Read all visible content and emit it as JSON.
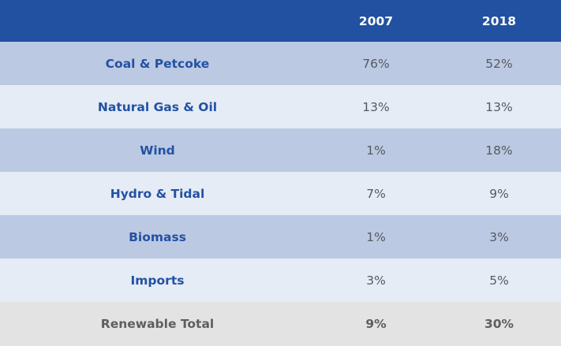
{
  "colors": {
    "header_bg": "#2251a1",
    "row_dark": "#bcc9e2",
    "row_light": "#e5ecf5",
    "total_bg": "#e3e3e3",
    "source_text": "#2351a3",
    "value_text": "#555a61"
  },
  "header": {
    "source": "",
    "year_2007": "2007",
    "year_2018": "2018"
  },
  "rows": [
    {
      "source": "Coal & Petcoke",
      "y2007": "76%",
      "y2018": "52%"
    },
    {
      "source": "Natural Gas & Oil",
      "y2007": "13%",
      "y2018": "13%"
    },
    {
      "source": "Wind",
      "y2007": "1%",
      "y2018": "18%"
    },
    {
      "source": "Hydro & Tidal",
      "y2007": "7%",
      "y2018": "9%"
    },
    {
      "source": "Biomass",
      "y2007": "1%",
      "y2018": "3%"
    },
    {
      "source": "Imports",
      "y2007": "3%",
      "y2018": "5%"
    }
  ],
  "total": {
    "label": "Renewable Total",
    "y2007": "9%",
    "y2018": "30%"
  }
}
